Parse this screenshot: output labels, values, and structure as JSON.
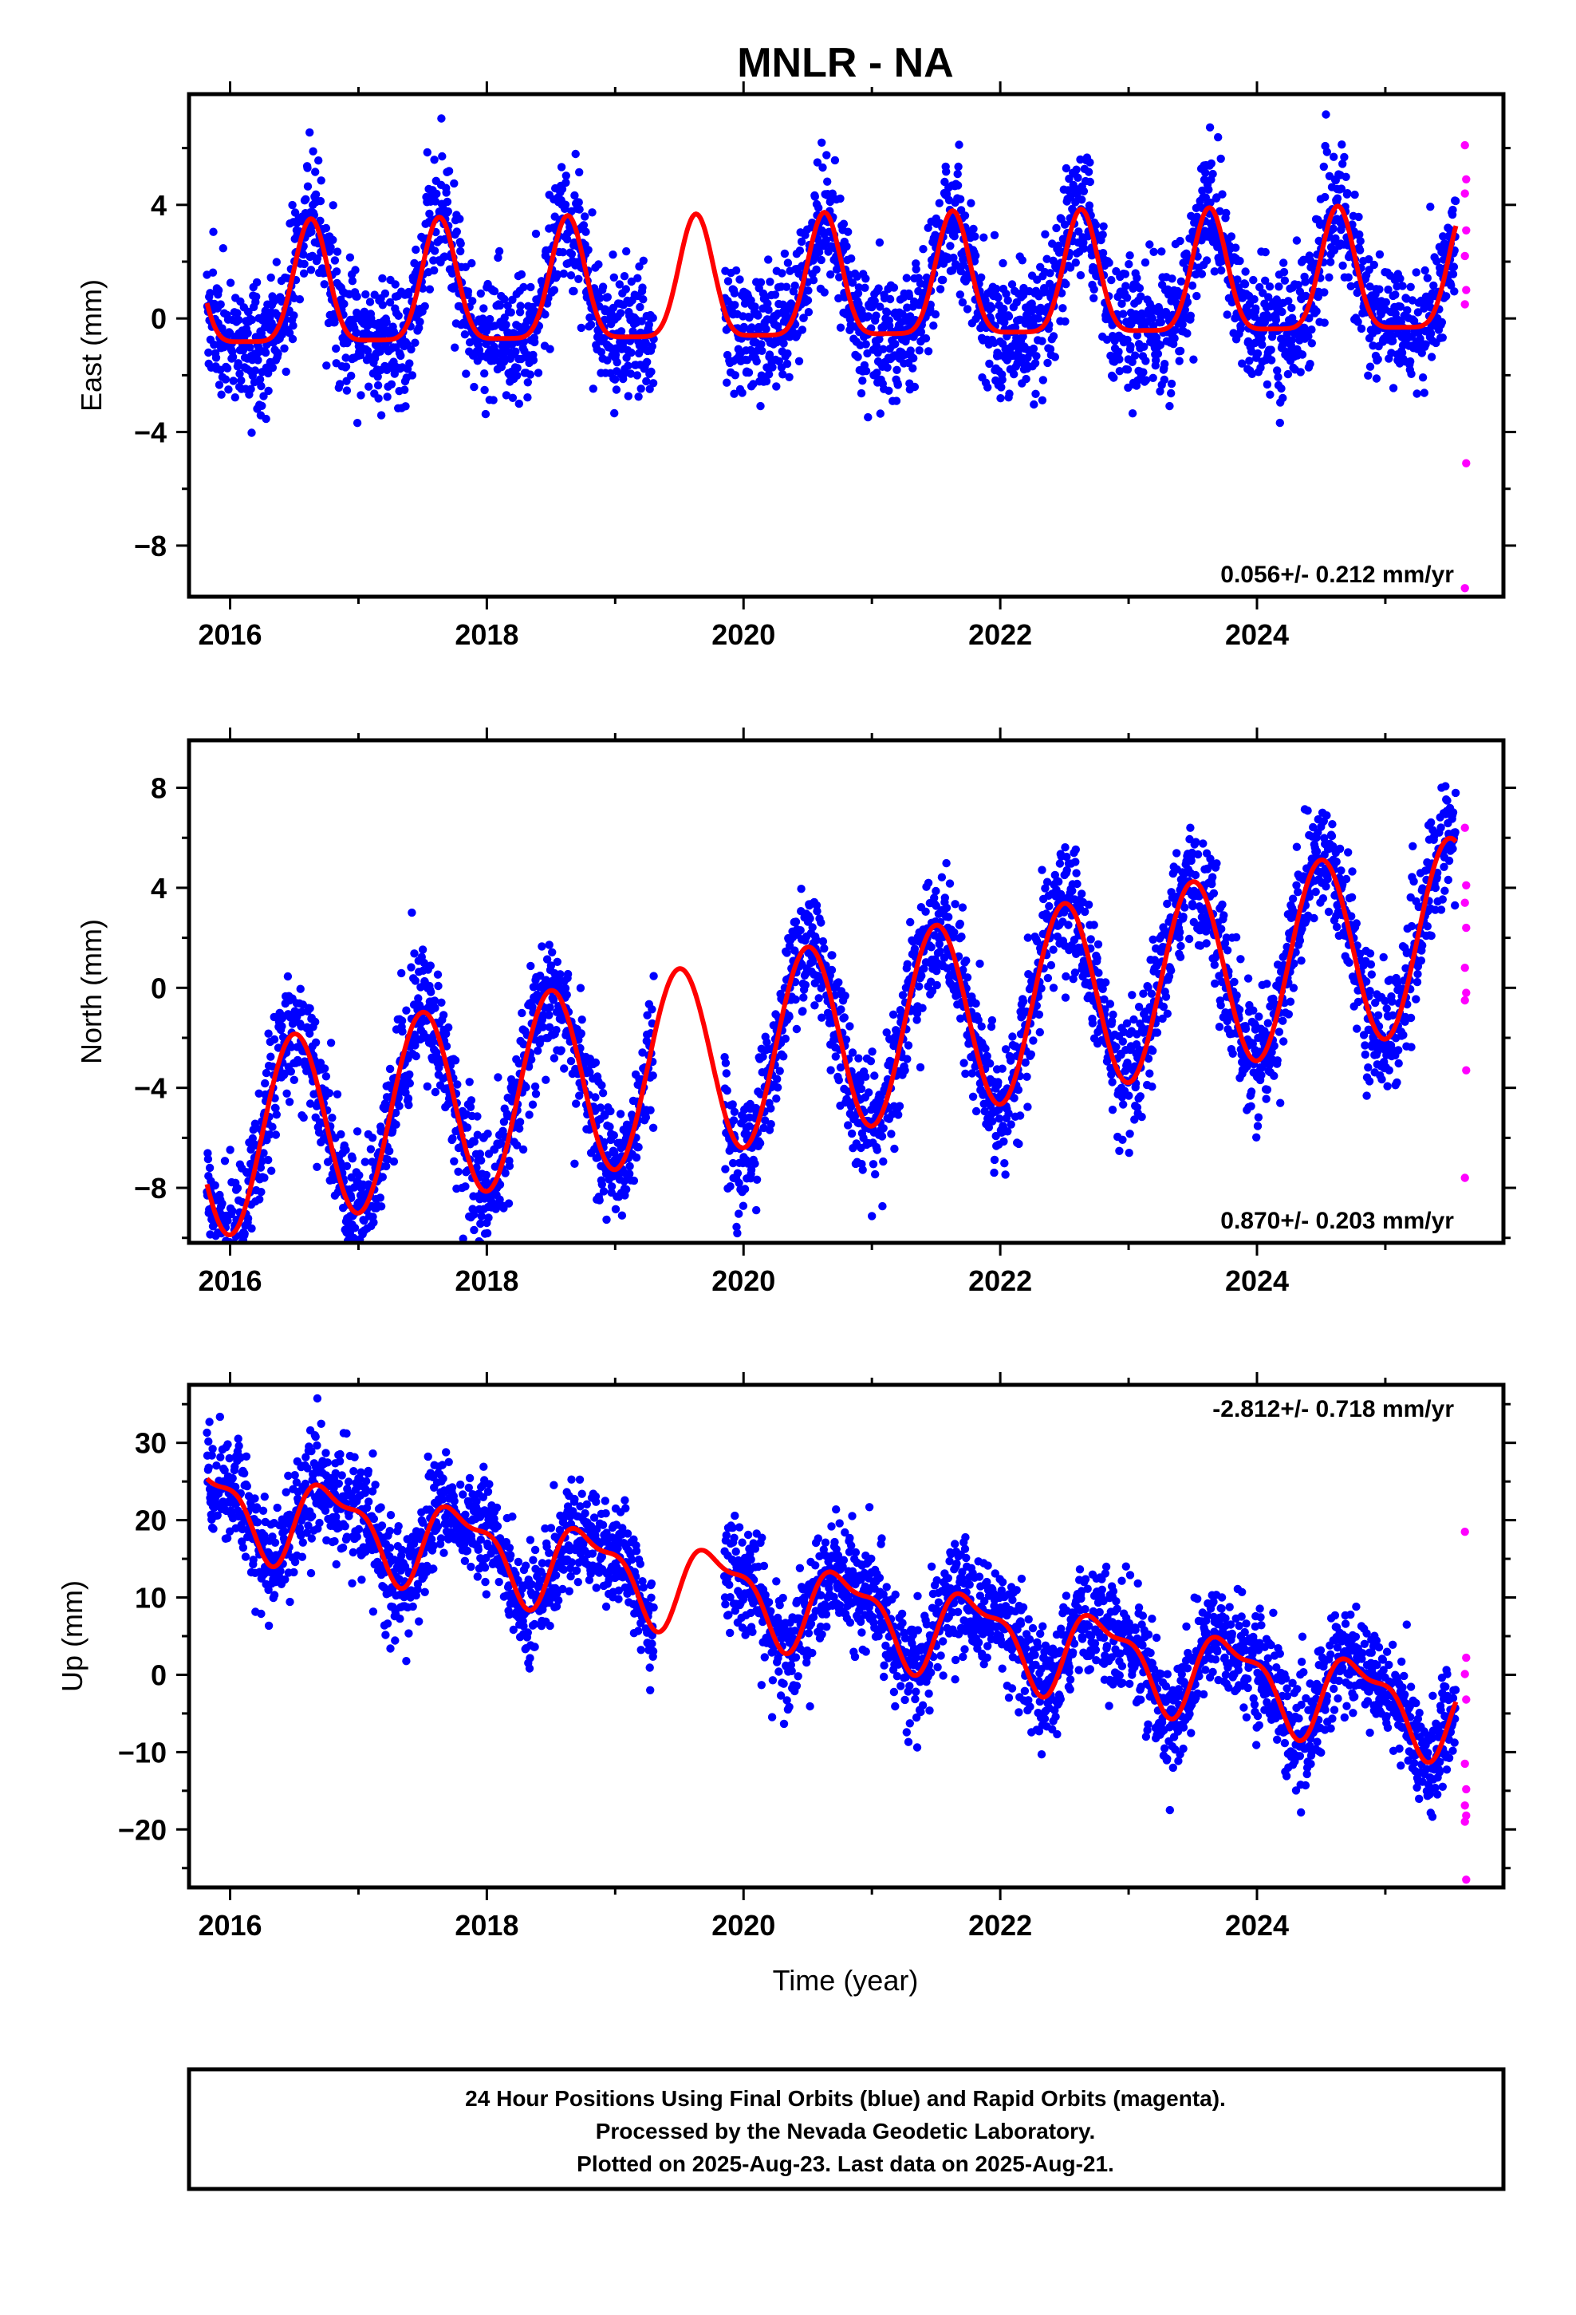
{
  "title": "MNLR - NA",
  "xlabel": "Time (year)",
  "footer": {
    "line1": "24 Hour Positions Using Final Orbits (blue) and Rapid Orbits (magenta).",
    "line2": "Processed by the Nevada Geodetic Laboratory.",
    "line3": "Plotted on 2025-Aug-23. Last data on 2025-Aug-21."
  },
  "colors": {
    "final": "#0000ff",
    "rapid": "#ff00ff",
    "model": "#ff0000",
    "frame": "#000000"
  },
  "chart_data": [
    {
      "type": "scatter",
      "panel": "east",
      "ylabel": "East (mm)",
      "rate_label": "0.056+/- 0.212 mm/yr",
      "rate_position": "bottom-right",
      "xlim": [
        2015.68,
        2025.92
      ],
      "ylim": [
        -9.8,
        7.9
      ],
      "x_ticks": [
        2016,
        2018,
        2020,
        2022,
        2024
      ],
      "y_ticks": [
        -8,
        -4,
        0,
        4
      ],
      "data_start": 2015.82,
      "data_end": 2025.55,
      "gap": [
        2019.3,
        2019.85
      ],
      "model": {
        "trend": [
          0.7,
          0.056
        ],
        "annual": [
          0.0,
          -2.2
        ],
        "semiannual": [
          0.0,
          0.0
        ],
        "amp": 2.1,
        "phase": 0.63,
        "scatter_sigma": 1.1
      },
      "rapid": {
        "x": [
          2025.62,
          2025.63,
          2025.62,
          2025.63,
          2025.62,
          2025.63,
          2025.62,
          2025.63,
          2025.62
        ],
        "y": [
          6.1,
          4.9,
          4.4,
          3.1,
          2.2,
          1.0,
          0.5,
          -5.1,
          -9.5
        ]
      }
    },
    {
      "type": "scatter",
      "panel": "north",
      "ylabel": "North (mm)",
      "rate_label": "0.870+/- 0.203 mm/yr",
      "rate_position": "bottom-right",
      "xlim": [
        2015.68,
        2025.92
      ],
      "ylim": [
        -10.2,
        9.9
      ],
      "x_ticks": [
        2016,
        2018,
        2020,
        2022,
        2024
      ],
      "y_ticks": [
        -8,
        -4,
        0,
        4,
        8
      ],
      "data_start": 2015.82,
      "data_end": 2025.55,
      "gap": [
        2019.3,
        2019.85
      ],
      "model": {
        "trend": [
          -2.6,
          0.87
        ],
        "amp": 3.8,
        "phase": 0.5,
        "scatter_sigma": 1.2
      },
      "rapid": {
        "x": [
          2025.62,
          2025.63,
          2025.62,
          2025.63,
          2025.62,
          2025.63,
          2025.62,
          2025.63,
          2025.62
        ],
        "y": [
          6.4,
          4.1,
          3.4,
          2.4,
          0.8,
          -0.2,
          -0.5,
          -3.3,
          -7.6
        ]
      }
    },
    {
      "type": "scatter",
      "panel": "up",
      "ylabel": "Up (mm)",
      "rate_label": "-2.812+/- 0.718 mm/yr",
      "rate_position": "top-right",
      "xlim": [
        2015.68,
        2025.92
      ],
      "ylim": [
        -27.5,
        37.5
      ],
      "x_ticks": [
        2016,
        2018,
        2020,
        2022,
        2024
      ],
      "y_ticks": [
        -20,
        -10,
        0,
        10,
        20,
        30
      ],
      "data_start": 2015.82,
      "data_end": 2025.55,
      "gap": [
        2019.3,
        2019.85
      ],
      "model": {
        "trend": [
          10.5,
          -2.812
        ],
        "amp": 5.0,
        "phase": 0.8,
        "semi_amp": 2.0,
        "scatter_sigma": 3.5
      },
      "rapid": {
        "x": [
          2025.62,
          2025.63,
          2025.62,
          2025.63,
          2025.62,
          2025.63,
          2025.62,
          2025.63,
          2025.62,
          2025.63
        ],
        "y": [
          18.5,
          2.2,
          0.1,
          -3.2,
          -11.5,
          -14.8,
          -16.9,
          -18.2,
          -19.0,
          -26.5
        ]
      }
    }
  ]
}
